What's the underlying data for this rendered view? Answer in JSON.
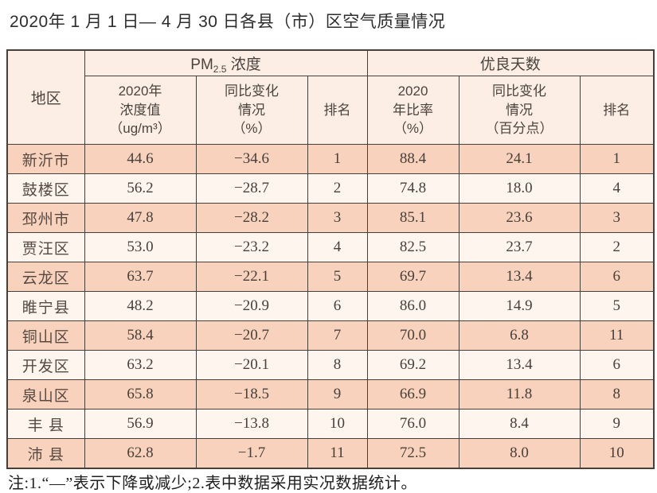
{
  "title": "2020年 1 月 1 日— 4 月 30 日各县（市）区空气质量情况",
  "note": "注:1.“—”表示下降或减少;2.表中数据采用实况数据统计。",
  "colors": {
    "row_odd": "#f8d2bc",
    "row_even": "#fdf5ee",
    "header_bg": "#fceee4",
    "border": "#46403a"
  },
  "table": {
    "header": {
      "region": "地区",
      "pm_group": {
        "prefix": "PM",
        "sub": "2.5",
        "suffix": " 浓度"
      },
      "days_group": "优良天数",
      "pm_value": "2020年\n浓度值\n（ug/m³）",
      "pm_change": "同比变化\n情况\n（%）",
      "pm_rank": "排名",
      "days_ratio": "2020\n年比率\n（%）",
      "days_change": "同比变化\n情况\n（百分点）",
      "days_rank": "排名"
    },
    "rows": [
      {
        "region": "新沂市",
        "pm_value": "44.6",
        "pm_change": "−34.6",
        "pm_rank": "1",
        "days_ratio": "88.4",
        "days_change": "24.1",
        "days_rank": "1"
      },
      {
        "region": "鼓楼区",
        "pm_value": "56.2",
        "pm_change": "−28.7",
        "pm_rank": "2",
        "days_ratio": "74.8",
        "days_change": "18.0",
        "days_rank": "4"
      },
      {
        "region": "邳州市",
        "pm_value": "47.8",
        "pm_change": "−28.2",
        "pm_rank": "3",
        "days_ratio": "85.1",
        "days_change": "23.6",
        "days_rank": "3"
      },
      {
        "region": "贾汪区",
        "pm_value": "53.0",
        "pm_change": "−23.2",
        "pm_rank": "4",
        "days_ratio": "82.5",
        "days_change": "23.7",
        "days_rank": "2"
      },
      {
        "region": "云龙区",
        "pm_value": "63.7",
        "pm_change": "−22.1",
        "pm_rank": "5",
        "days_ratio": "69.7",
        "days_change": "13.4",
        "days_rank": "6"
      },
      {
        "region": "睢宁县",
        "pm_value": "48.2",
        "pm_change": "−20.9",
        "pm_rank": "6",
        "days_ratio": "86.0",
        "days_change": "14.9",
        "days_rank": "5"
      },
      {
        "region": "铜山区",
        "pm_value": "58.4",
        "pm_change": "−20.7",
        "pm_rank": "7",
        "days_ratio": "70.0",
        "days_change": "6.8",
        "days_rank": "11"
      },
      {
        "region": "开发区",
        "pm_value": "63.2",
        "pm_change": "−20.1",
        "pm_rank": "8",
        "days_ratio": "69.2",
        "days_change": "13.4",
        "days_rank": "6"
      },
      {
        "region": "泉山区",
        "pm_value": "65.8",
        "pm_change": "−18.5",
        "pm_rank": "9",
        "days_ratio": "66.9",
        "days_change": "11.8",
        "days_rank": "8"
      },
      {
        "region": "丰 县",
        "pm_value": "56.9",
        "pm_change": "−13.8",
        "pm_rank": "10",
        "days_ratio": "76.0",
        "days_change": "8.4",
        "days_rank": "9"
      },
      {
        "region": "沛 县",
        "pm_value": "62.8",
        "pm_change": "−1.7",
        "pm_rank": "11",
        "days_ratio": "72.5",
        "days_change": "8.0",
        "days_rank": "10"
      }
    ]
  }
}
